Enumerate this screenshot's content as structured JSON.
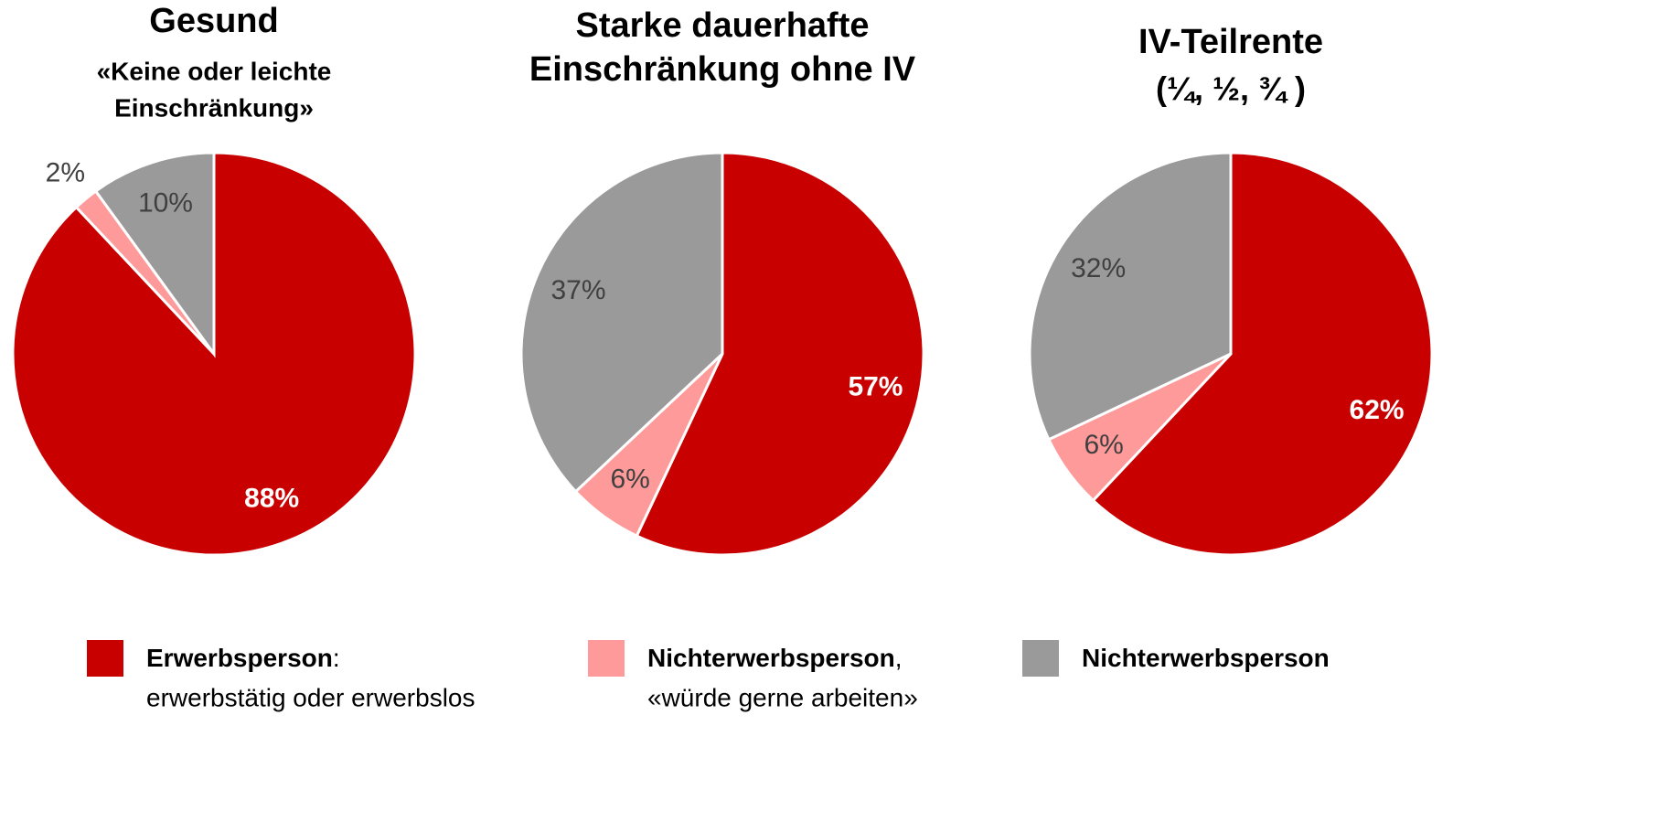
{
  "chart_data": [
    {
      "type": "pie",
      "title": [
        "Gesund"
      ],
      "subtitle": [
        "«Keine oder leichte",
        "Einschränkung»"
      ],
      "values": [
        88,
        2,
        10
      ],
      "value_labels": [
        "88%",
        "2%",
        "10%"
      ],
      "colors": [
        "#c80000",
        "#ff9a9a",
        "#9a9a9a"
      ]
    },
    {
      "type": "pie",
      "title": [
        "Starke dauerhafte",
        "Einschränkung ohne IV"
      ],
      "values": [
        57,
        6,
        37
      ],
      "value_labels": [
        "57%",
        "6%",
        "37%"
      ],
      "colors": [
        "#c80000",
        "#ff9a9a",
        "#9a9a9a"
      ]
    },
    {
      "type": "pie",
      "title": [
        "IV-Teilrente"
      ],
      "subtitle": [
        "(¼, ½, ¾ )"
      ],
      "values": [
        62,
        6,
        32
      ],
      "value_labels": [
        "62%",
        "6%",
        "32%"
      ],
      "colors": [
        "#c80000",
        "#ff9a9a",
        "#9a9a9a"
      ]
    }
  ],
  "legend": [
    {
      "name": "Erwerbsperson",
      "punct": ":",
      "detail": "erwerbstätig oder erwerbslos",
      "color": "#c80000"
    },
    {
      "name": "Nichterwerbsperson",
      "punct": ",",
      "detail": "«würde gerne arbeiten»",
      "color": "#ff9a9a"
    },
    {
      "name": "Nichterwerbsperson",
      "color": "#9a9a9a"
    }
  ]
}
